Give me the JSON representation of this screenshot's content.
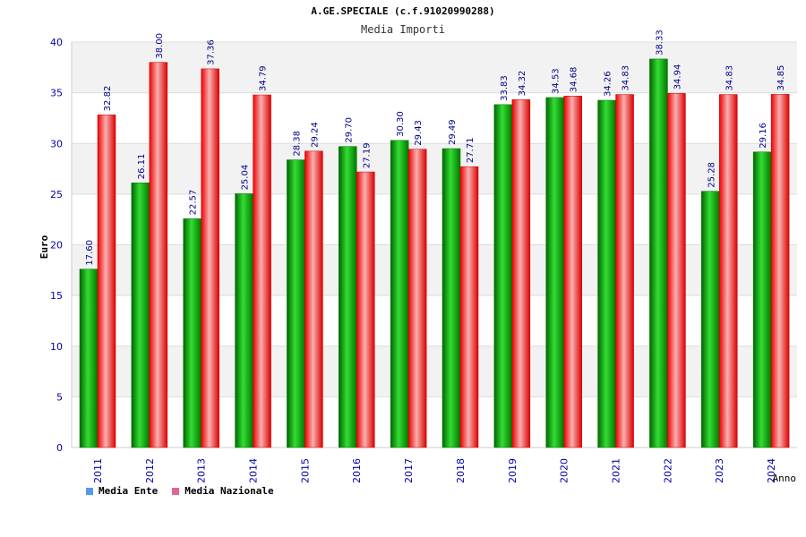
{
  "chart_data": {
    "type": "bar",
    "title": "A.GE.SPECIALE (c.f.91020990288)",
    "subtitle": "Media Importi",
    "xlabel": "Anno",
    "ylabel": "Euro",
    "ylim": [
      0,
      40
    ],
    "yticks": [
      0,
      5,
      10,
      15,
      20,
      25,
      30,
      35,
      40
    ],
    "categories": [
      "2011",
      "2012",
      "2013",
      "2014",
      "2015",
      "2016",
      "2017",
      "2018",
      "2019",
      "2020",
      "2021",
      "2022",
      "2023",
      "2024"
    ],
    "series": [
      {
        "name": "Media Ente",
        "color": "#00aa00",
        "values": [
          17.6,
          26.11,
          22.57,
          25.04,
          28.38,
          29.7,
          30.3,
          29.49,
          33.83,
          34.53,
          34.26,
          38.33,
          25.28,
          29.16
        ]
      },
      {
        "name": "Media Nazionale",
        "color": "#ee0000",
        "values": [
          32.82,
          38.0,
          37.36,
          34.79,
          29.24,
          27.19,
          29.43,
          27.71,
          34.32,
          34.68,
          34.83,
          34.94,
          34.83,
          34.85
        ]
      }
    ],
    "legend": [
      {
        "label": "Media Ente",
        "color": "#5599ee"
      },
      {
        "label": "Media Nazionale",
        "color": "#dd6699"
      }
    ]
  }
}
